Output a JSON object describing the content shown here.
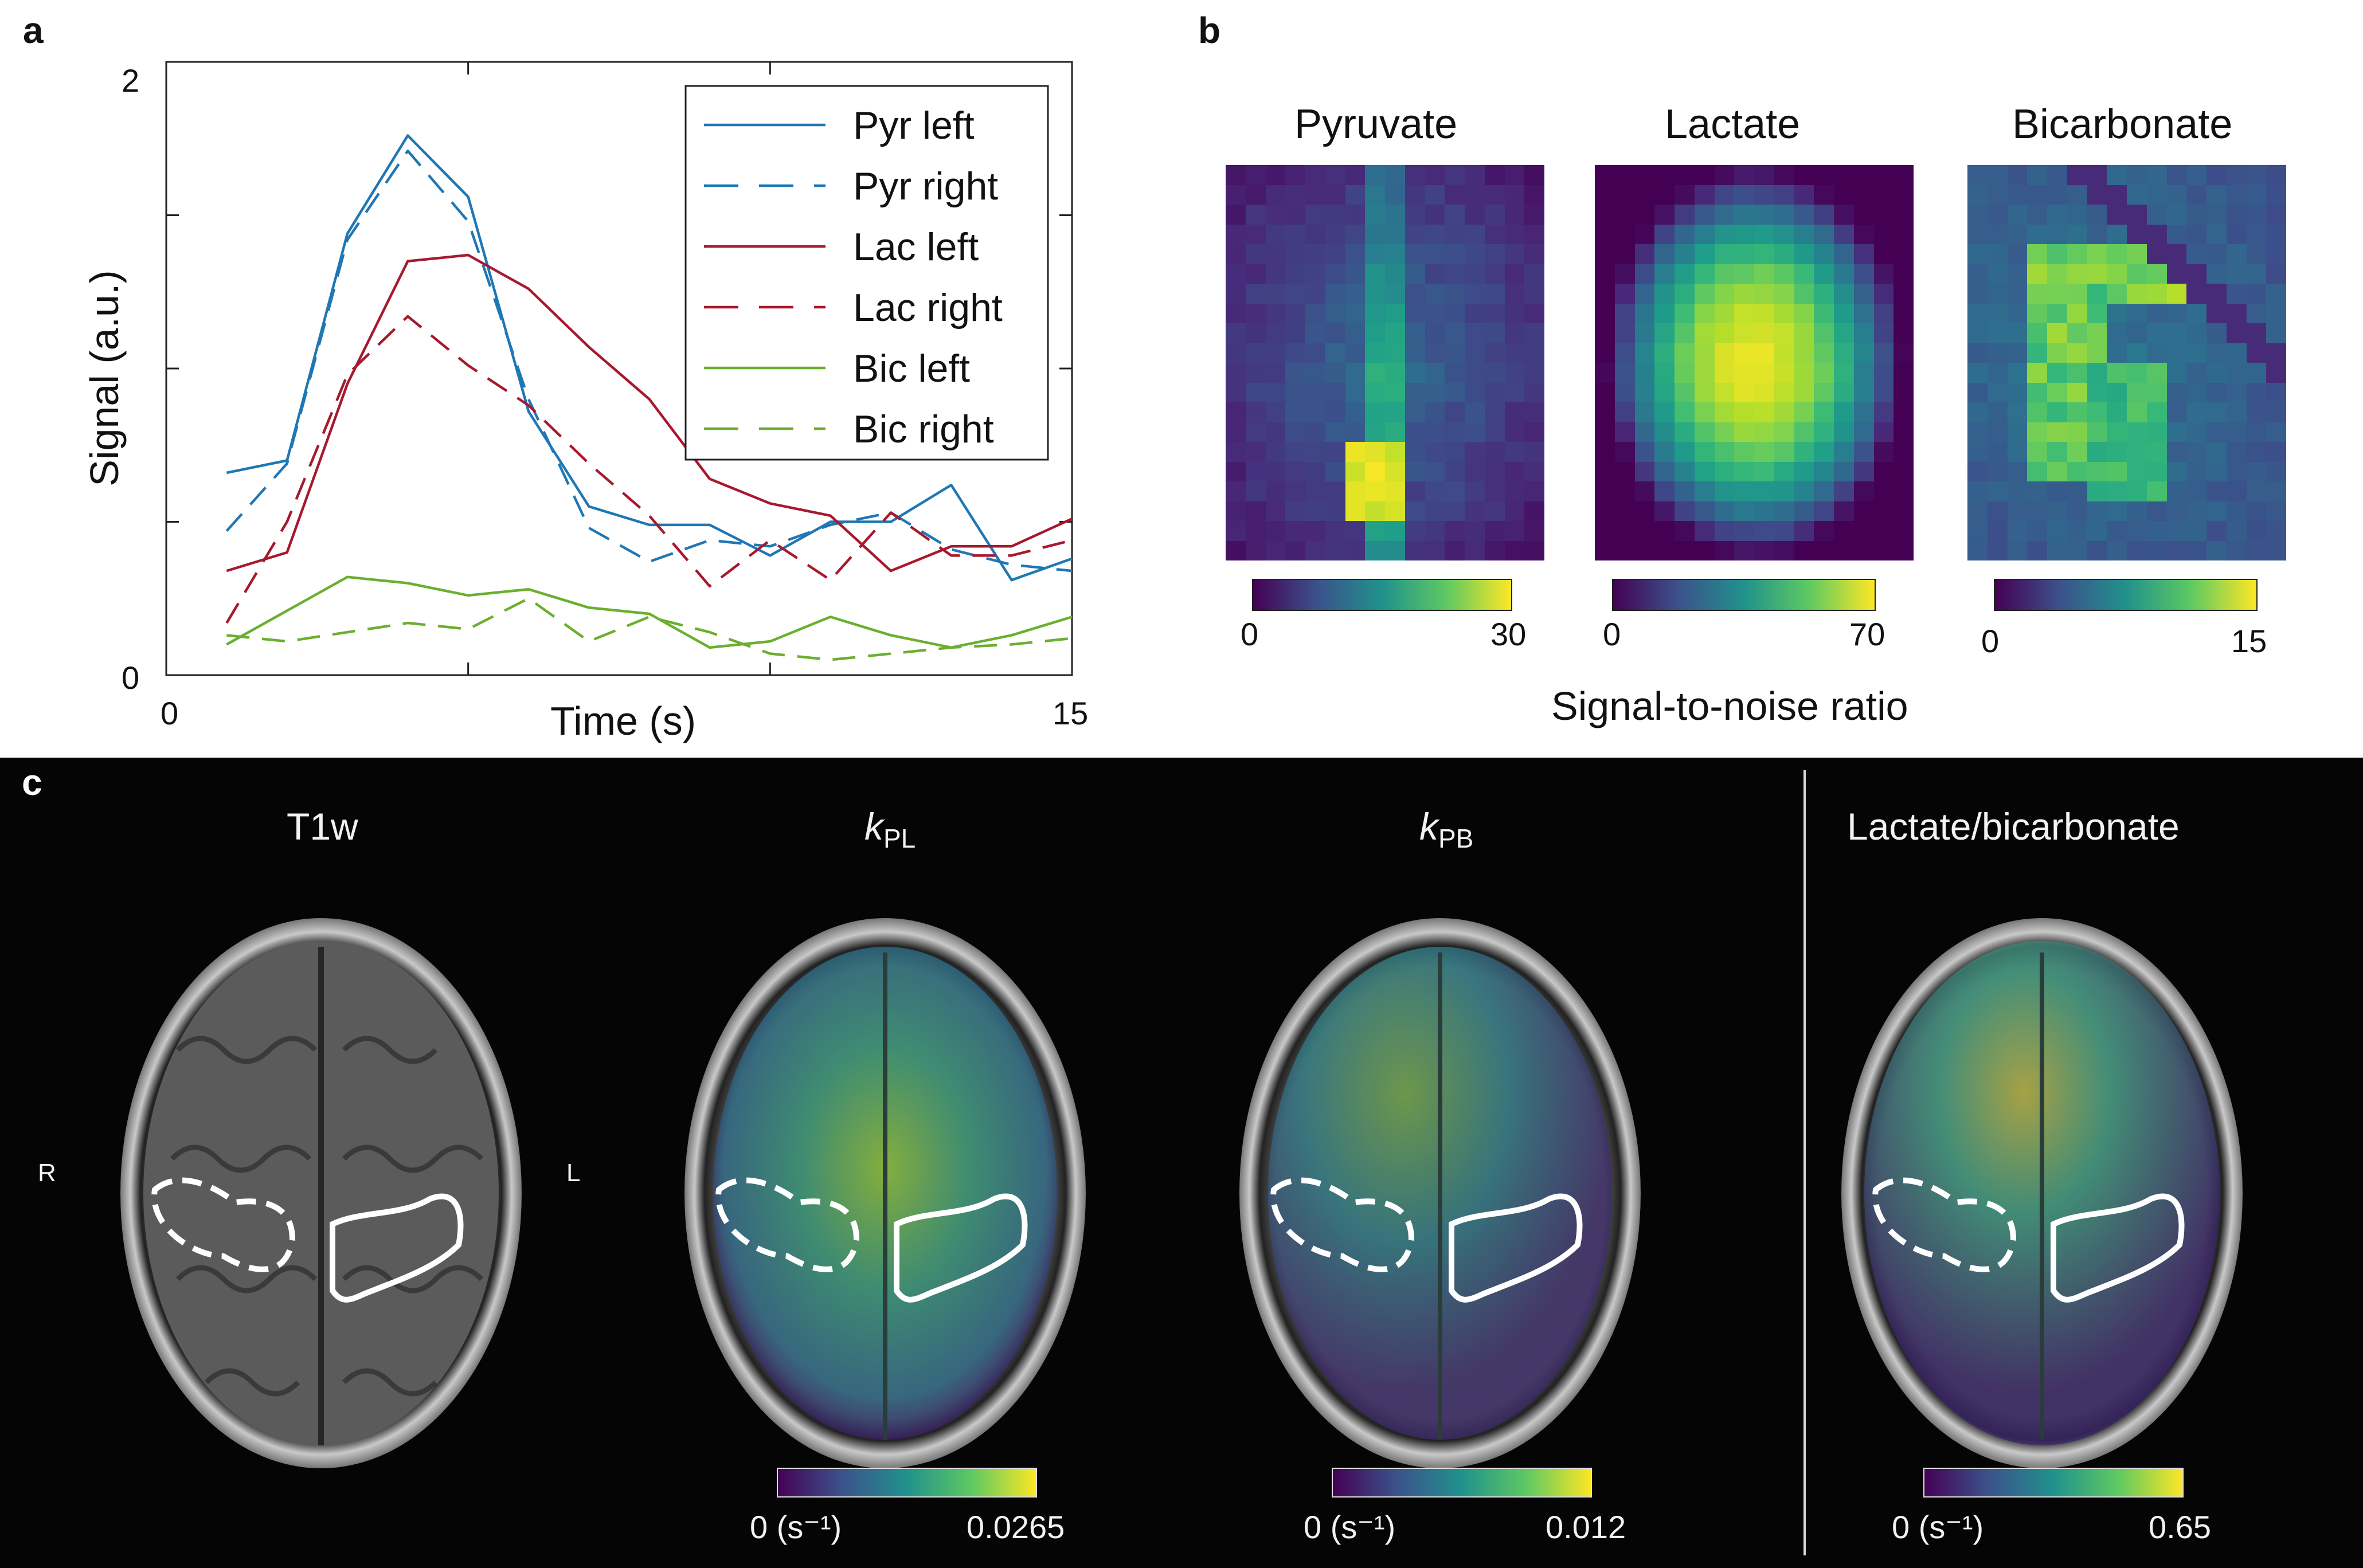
{
  "panels": {
    "a": "a",
    "b": "b",
    "c": "c"
  },
  "chart_data": {
    "type": "line",
    "title": "",
    "xlabel": "Time (s)",
    "ylabel": "Signal (a.u.)",
    "xlim": [
      0,
      15
    ],
    "ylim": [
      0,
      2
    ],
    "xticks": [
      "0",
      "15"
    ],
    "yticks": [
      "0",
      "2"
    ],
    "legend_position": "top-right",
    "x": [
      1,
      2,
      3,
      4,
      5,
      6,
      7,
      8,
      9,
      10,
      11,
      12,
      13,
      14,
      15
    ],
    "series": [
      {
        "name": "Pyr left",
        "style": "solid",
        "color": "#1f77b4",
        "values": [
          0.66,
          0.7,
          1.44,
          1.76,
          1.56,
          0.86,
          0.55,
          0.49,
          0.49,
          0.39,
          0.5,
          0.5,
          0.62,
          0.31,
          0.38
        ]
      },
      {
        "name": "Pyr right",
        "style": "dashed",
        "color": "#1f77b4",
        "values": [
          0.47,
          0.69,
          1.42,
          1.71,
          1.48,
          0.9,
          0.48,
          0.37,
          0.44,
          0.42,
          0.49,
          0.53,
          0.41,
          0.36,
          0.34
        ]
      },
      {
        "name": "Lac left",
        "style": "solid",
        "color": "#a6192e",
        "values": [
          0.34,
          0.4,
          0.95,
          1.35,
          1.37,
          1.26,
          1.07,
          0.9,
          0.64,
          0.56,
          0.52,
          0.34,
          0.42,
          0.42,
          0.51
        ]
      },
      {
        "name": "Lac right",
        "style": "dashed",
        "color": "#a6192e",
        "values": [
          0.17,
          0.5,
          0.98,
          1.17,
          1.01,
          0.88,
          0.69,
          0.52,
          0.29,
          0.44,
          0.31,
          0.53,
          0.39,
          0.39,
          0.44
        ]
      },
      {
        "name": "Bic left",
        "style": "solid",
        "color": "#6aaf30",
        "values": [
          0.1,
          0.21,
          0.32,
          0.3,
          0.26,
          0.28,
          0.22,
          0.2,
          0.09,
          0.11,
          0.19,
          0.13,
          0.09,
          0.13,
          0.19
        ]
      },
      {
        "name": "Bic right",
        "style": "dashed",
        "color": "#6aaf30",
        "values": [
          0.13,
          0.11,
          0.14,
          0.17,
          0.15,
          0.25,
          0.11,
          0.19,
          0.14,
          0.07,
          0.05,
          0.07,
          0.09,
          0.1,
          0.12
        ]
      }
    ]
  },
  "panel_b": {
    "footer": "Signal-to-noise ratio",
    "maps": [
      {
        "title": "Pyruvate",
        "min": "0",
        "max": "30"
      },
      {
        "title": "Lactate",
        "min": "0",
        "max": "70"
      },
      {
        "title": "Bicarbonate",
        "min": "0",
        "max": "15"
      }
    ]
  },
  "panel_c": {
    "side_right": "R",
    "side_left": "L",
    "images": [
      {
        "title": "T1w"
      },
      {
        "title_main": "k",
        "title_sub": "PL",
        "min": "0 (s⁻¹)",
        "max": "0.0265"
      },
      {
        "title_main": "k",
        "title_sub": "PB",
        "min": "0 (s⁻¹)",
        "max": "0.012"
      },
      {
        "title": "Lactate/bicarbonate",
        "min": "0 (s⁻¹)",
        "max": "0.65"
      }
    ]
  },
  "colors": {
    "viridis": [
      "#440154",
      "#3b528b",
      "#21918c",
      "#5ec962",
      "#fde725"
    ]
  }
}
